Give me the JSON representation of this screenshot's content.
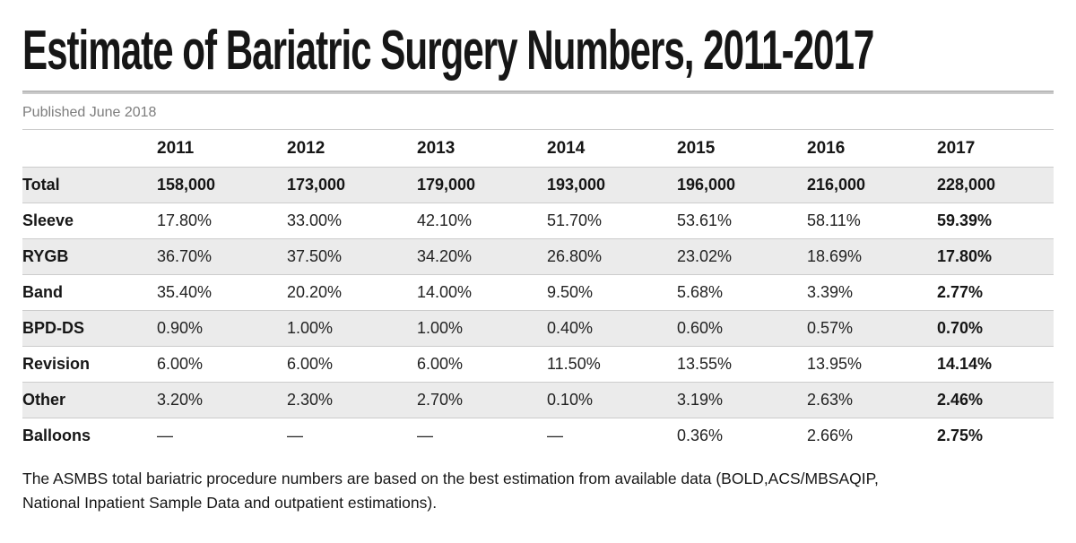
{
  "header": {
    "title": "Estimate of Bariatric Surgery Numbers, 2011-2017",
    "published": "Published June 2018"
  },
  "table": {
    "columns": [
      "",
      "2011",
      "2012",
      "2013",
      "2014",
      "2015",
      "2016",
      "2017"
    ],
    "rows": [
      {
        "label": "Total",
        "values": [
          "158,000",
          "173,000",
          "179,000",
          "193,000",
          "196,000",
          "216,000",
          "228,000"
        ]
      },
      {
        "label": "Sleeve",
        "values": [
          "17.80%",
          "33.00%",
          "42.10%",
          "51.70%",
          "53.61%",
          "58.11%",
          "59.39%"
        ]
      },
      {
        "label": "RYGB",
        "values": [
          "36.70%",
          "37.50%",
          "34.20%",
          "26.80%",
          "23.02%",
          "18.69%",
          "17.80%"
        ]
      },
      {
        "label": "Band",
        "values": [
          "35.40%",
          "20.20%",
          "14.00%",
          "9.50%",
          "5.68%",
          "3.39%",
          "2.77%"
        ]
      },
      {
        "label": "BPD-DS",
        "values": [
          "0.90%",
          "1.00%",
          "1.00%",
          "0.40%",
          "0.60%",
          "0.57%",
          "0.70%"
        ]
      },
      {
        "label": "Revision",
        "values": [
          "6.00%",
          "6.00%",
          "6.00%",
          "11.50%",
          "13.55%",
          "13.95%",
          "14.14%"
        ]
      },
      {
        "label": "Other",
        "values": [
          "3.20%",
          "2.30%",
          "2.70%",
          "0.10%",
          "3.19%",
          "2.63%",
          "2.46%"
        ]
      },
      {
        "label": "Balloons",
        "values": [
          "—",
          "—",
          "—",
          "—",
          "0.36%",
          "2.66%",
          "2.75%"
        ]
      }
    ]
  },
  "footer": {
    "lines": [
      "The ASMBS total bariatric procedure numbers are based on the best estimation from available data (BOLD,ACS/MBSAQIP,",
      "National Inpatient Sample Data and outpatient estimations)."
    ]
  },
  "colors": {
    "row_shade": "#ebebeb",
    "row_border": "#cccccc",
    "rule": "#b9b9b9",
    "muted_text": "#7d7d7d",
    "text": "#1a1a1a"
  },
  "chart_data": {
    "type": "table",
    "title": "Estimate of Bariatric Surgery Numbers, 2011-2017",
    "subtitle": "Published June 2018",
    "categories": [
      "2011",
      "2012",
      "2013",
      "2014",
      "2015",
      "2016",
      "2017"
    ],
    "series": [
      {
        "name": "Total",
        "unit": "procedures",
        "values": [
          158000,
          173000,
          179000,
          193000,
          196000,
          216000,
          228000
        ]
      },
      {
        "name": "Sleeve",
        "unit": "%",
        "values": [
          17.8,
          33.0,
          42.1,
          51.7,
          53.61,
          58.11,
          59.39
        ]
      },
      {
        "name": "RYGB",
        "unit": "%",
        "values": [
          36.7,
          37.5,
          34.2,
          26.8,
          23.02,
          18.69,
          17.8
        ]
      },
      {
        "name": "Band",
        "unit": "%",
        "values": [
          35.4,
          20.2,
          14.0,
          9.5,
          5.68,
          3.39,
          2.77
        ]
      },
      {
        "name": "BPD-DS",
        "unit": "%",
        "values": [
          0.9,
          1.0,
          1.0,
          0.4,
          0.6,
          0.57,
          0.7
        ]
      },
      {
        "name": "Revision",
        "unit": "%",
        "values": [
          6.0,
          6.0,
          6.0,
          11.5,
          13.55,
          13.95,
          14.14
        ]
      },
      {
        "name": "Other",
        "unit": "%",
        "values": [
          3.2,
          2.3,
          2.7,
          0.1,
          3.19,
          2.63,
          2.46
        ]
      },
      {
        "name": "Balloons",
        "unit": "%",
        "values": [
          null,
          null,
          null,
          null,
          0.36,
          2.66,
          2.75
        ]
      }
    ],
    "annotations": [
      "The ASMBS total bariatric procedure numbers are based on the best estimation from available data (BOLD,ACS/MBSAQIP, National Inpatient Sample Data and outpatient estimations)."
    ]
  }
}
